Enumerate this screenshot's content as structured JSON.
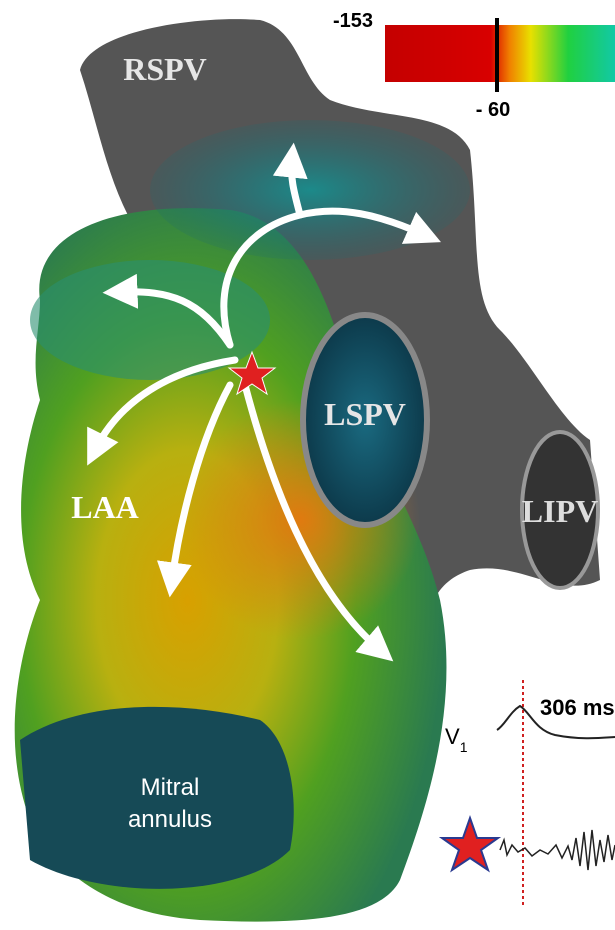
{
  "colorbar": {
    "min_label": "-153",
    "threshold_label": "- 60"
  },
  "structures": {
    "rspv": "RSPV",
    "lspv": "LSPV",
    "lipv": "LIPV",
    "laa": "LAA",
    "mitral_line1": "Mitral",
    "mitral_line2": "annulus"
  },
  "ecg": {
    "interval_label": "306 ms",
    "lead_label": "V",
    "lead_subscript": "1"
  }
}
